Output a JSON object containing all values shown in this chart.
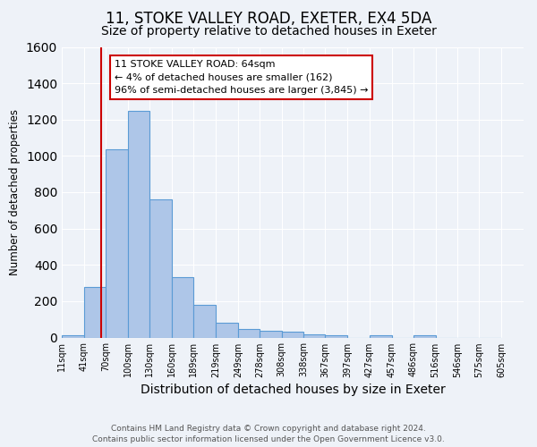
{
  "title": "11, STOKE VALLEY ROAD, EXETER, EX4 5DA",
  "subtitle": "Size of property relative to detached houses in Exeter",
  "xlabel": "Distribution of detached houses by size in Exeter",
  "ylabel": "Number of detached properties",
  "footer_line1": "Contains HM Land Registry data © Crown copyright and database right 2024.",
  "footer_line2": "Contains public sector information licensed under the Open Government Licence v3.0.",
  "bar_left_edges": [
    11,
    41,
    70,
    100,
    130,
    160,
    189,
    219,
    249,
    278,
    308,
    338,
    367,
    397,
    427,
    457,
    486,
    516,
    546,
    575
  ],
  "bar_heights": [
    10,
    280,
    1035,
    1250,
    760,
    330,
    180,
    80,
    45,
    35,
    30,
    18,
    12,
    0,
    12,
    0,
    12,
    0,
    0,
    0
  ],
  "bar_widths": [
    30,
    29,
    30,
    30,
    30,
    29,
    30,
    30,
    29,
    30,
    30,
    29,
    30,
    30,
    30,
    29,
    30,
    30,
    29,
    30
  ],
  "tick_labels": [
    "11sqm",
    "41sqm",
    "70sqm",
    "100sqm",
    "130sqm",
    "160sqm",
    "189sqm",
    "219sqm",
    "249sqm",
    "278sqm",
    "308sqm",
    "338sqm",
    "367sqm",
    "397sqm",
    "427sqm",
    "457sqm",
    "486sqm",
    "516sqm",
    "546sqm",
    "575sqm",
    "605sqm"
  ],
  "tick_positions": [
    11,
    41,
    70,
    100,
    130,
    160,
    189,
    219,
    249,
    278,
    308,
    338,
    367,
    397,
    427,
    457,
    486,
    516,
    546,
    575,
    605
  ],
  "ylim": [
    0,
    1600
  ],
  "xlim": [
    11,
    635
  ],
  "bar_color": "#aec6e8",
  "bar_edge_color": "#5b9bd5",
  "marker_x": 64,
  "marker_color": "#cc0000",
  "annotation_title": "11 STOKE VALLEY ROAD: 64sqm",
  "annotation_line1": "← 4% of detached houses are smaller (162)",
  "annotation_line2": "96% of semi-detached houses are larger (3,845) →",
  "annotation_box_color": "#ffffff",
  "annotation_box_edge_color": "#cc0000",
  "background_color": "#eef2f8",
  "grid_color": "#ffffff",
  "title_fontsize": 12,
  "subtitle_fontsize": 10,
  "ylabel_fontsize": 8.5,
  "xlabel_fontsize": 10,
  "tick_fontsize": 7,
  "annotation_fontsize": 8,
  "footer_fontsize": 6.5
}
